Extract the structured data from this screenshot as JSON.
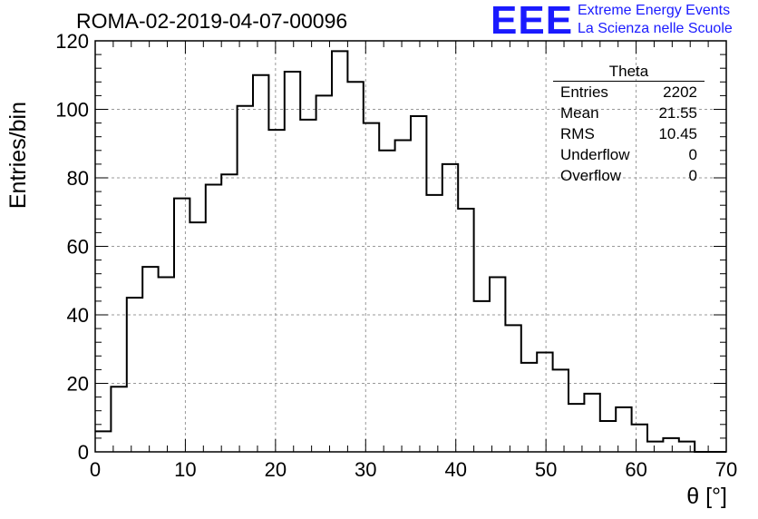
{
  "title": "ROMA-02-2019-04-07-00096",
  "logo": {
    "letters": "EEE",
    "line1": "Extreme Energy Events",
    "line2": "La Scienza nelle Scuole",
    "color": "#1a1aff"
  },
  "stats": {
    "name": "Theta",
    "rows": [
      {
        "label": "Entries",
        "value": "2202"
      },
      {
        "label": "Mean",
        "value": "21.55"
      },
      {
        "label": "RMS",
        "value": "10.45"
      },
      {
        "label": "Underflow",
        "value": "0"
      },
      {
        "label": "Overflow",
        "value": "0"
      }
    ]
  },
  "chart_data": {
    "type": "histogram",
    "title": "ROMA-02-2019-04-07-00096",
    "xlabel": "θ [°]",
    "ylabel": "Entries/bin",
    "xlim": [
      0,
      70
    ],
    "ylim": [
      0,
      120
    ],
    "grid": true,
    "bin_width": 1.75,
    "bin_edges_start": 0,
    "values": [
      6,
      19,
      45,
      54,
      51,
      74,
      67,
      78,
      81,
      101,
      110,
      94,
      111,
      97,
      104,
      117,
      108,
      96,
      88,
      91,
      98,
      75,
      84,
      71,
      44,
      51,
      37,
      26,
      29,
      24,
      14,
      17,
      9,
      13,
      8,
      3,
      4,
      3,
      0,
      0
    ],
    "x_ticks": [
      "0",
      "10",
      "20",
      "30",
      "40",
      "50",
      "60",
      "70"
    ],
    "y_ticks": [
      "0",
      "20",
      "40",
      "60",
      "80",
      "100",
      "120"
    ]
  }
}
